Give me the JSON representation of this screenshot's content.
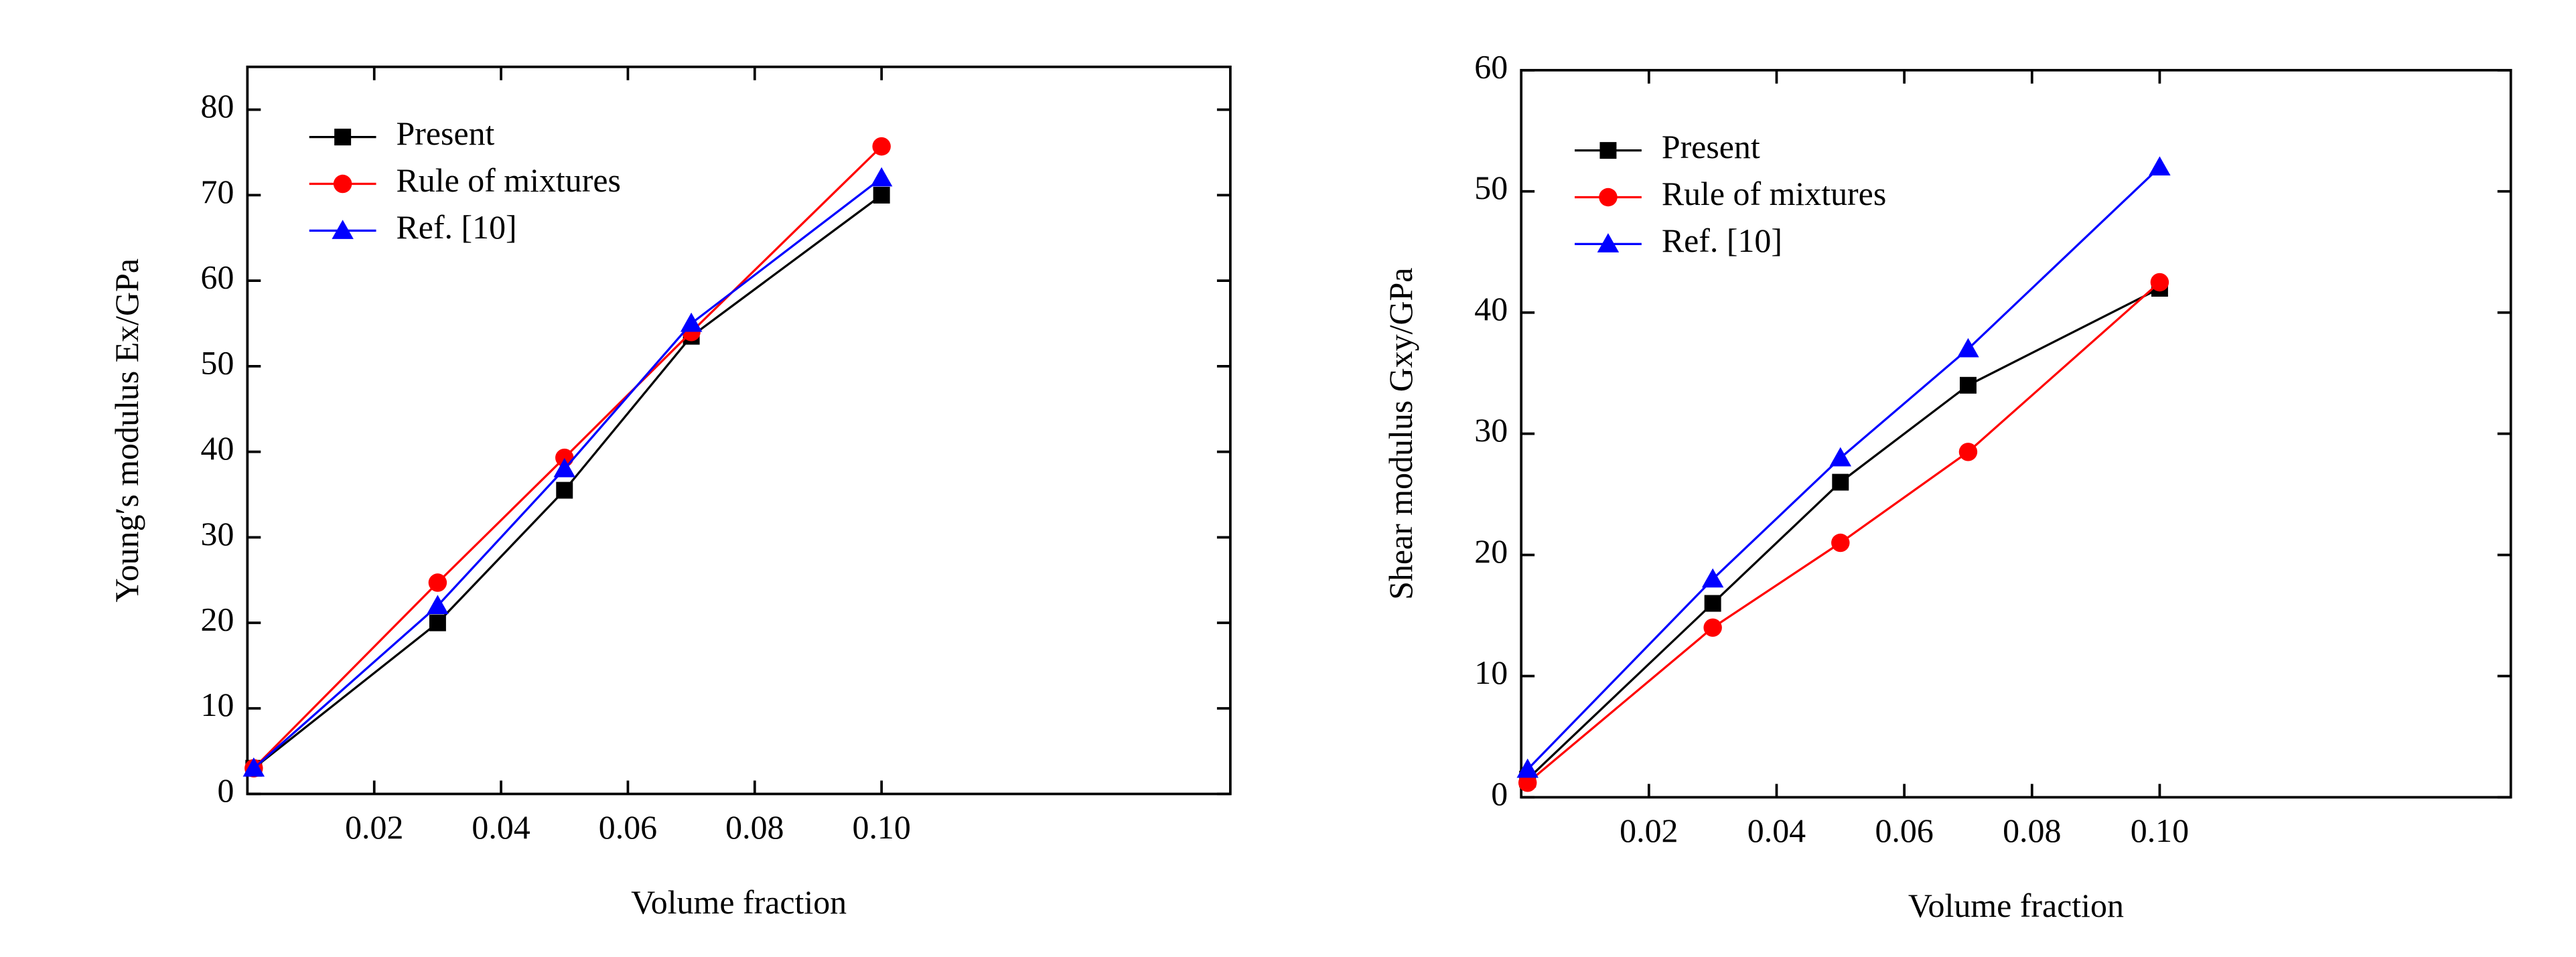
{
  "chart_data": [
    {
      "type": "line",
      "x_label": "Volume fraction",
      "y_label": "Young′s modulus Ex/GPa",
      "x": [
        0.001,
        0.03,
        0.05,
        0.07,
        0.1
      ],
      "series": [
        {
          "name": "Present",
          "color": "#000000",
          "marker": "square",
          "values": [
            3,
            20,
            35.5,
            53.5,
            70
          ]
        },
        {
          "name": "Rule of mixtures",
          "color": "#ff0000",
          "marker": "circle",
          "values": [
            3,
            24.7,
            39.3,
            54,
            75.7
          ]
        },
        {
          "name": "Ref. [10]",
          "color": "#0000ff",
          "marker": "triangle",
          "values": [
            3,
            22,
            38,
            55,
            72
          ]
        }
      ],
      "xlim": [
        0,
        0.155
      ],
      "xticks": [
        0.02,
        0.04,
        0.06,
        0.08,
        {
          "value": 0.1,
          "label": "0.10"
        }
      ],
      "ylim": [
        0,
        85
      ],
      "yticks": [
        0,
        10,
        20,
        30,
        40,
        50,
        60,
        70,
        80
      ],
      "legend": "upper left"
    },
    {
      "type": "line",
      "x_label": "Volume fraction",
      "y_label": "Shear modulus Gxy/GPa",
      "x": [
        0.001,
        0.03,
        0.05,
        0.07,
        0.1
      ],
      "series": [
        {
          "name": "Present",
          "color": "#000000",
          "marker": "square",
          "values": [
            1.5,
            16,
            26,
            34,
            42
          ]
        },
        {
          "name": "Rule of mixtures",
          "color": "#ff0000",
          "marker": "circle",
          "values": [
            1.2,
            14,
            21,
            28.5,
            42.5
          ]
        },
        {
          "name": "Ref. [10]",
          "color": "#0000ff",
          "marker": "triangle",
          "values": [
            2.3,
            18,
            28,
            37,
            52
          ]
        }
      ],
      "xlim": [
        0,
        0.155
      ],
      "xticks": [
        0.02,
        0.04,
        0.06,
        0.08,
        {
          "value": 0.1,
          "label": "0.10"
        }
      ],
      "ylim": [
        0,
        60
      ],
      "yticks": [
        0,
        10,
        20,
        30,
        40,
        50,
        60
      ],
      "legend": "upper left"
    }
  ]
}
